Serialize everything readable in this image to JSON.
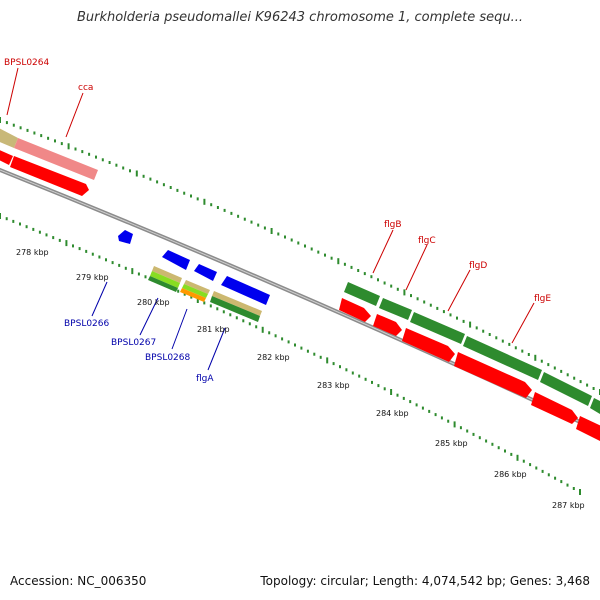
{
  "title": "Burkholderia pseudomallei K96243 chromosome 1, complete sequ...",
  "footer": {
    "accession": "Accession: NC_006350",
    "summary": "Topology: circular; Length: 4,074,542 bp; Genes: 3,468"
  },
  "kbp_labels": [
    "278 kbp",
    "279 kbp",
    "280 kbp",
    "281 kbp",
    "282 kbp",
    "283 kbp",
    "284 kbp",
    "285 kbp",
    "286 kbp",
    "287 kbp"
  ],
  "gene_labels": {
    "top": [
      "BPSL0264",
      "cca",
      "flgB",
      "flgC",
      "flgD",
      "flgE"
    ],
    "bottom": [
      "BPSL0266",
      "BPSL0267",
      "BPSL0268",
      "flgA"
    ]
  },
  "colors": {
    "backbone": "#8c8c8c",
    "forward_gene": "#ff0000",
    "forward_cds": "#2e8b2e",
    "reverse_gene": "#0000ee",
    "tick": "#2e8b2e",
    "label_top": "#cc0000",
    "label_bottom": "#0000aa"
  }
}
